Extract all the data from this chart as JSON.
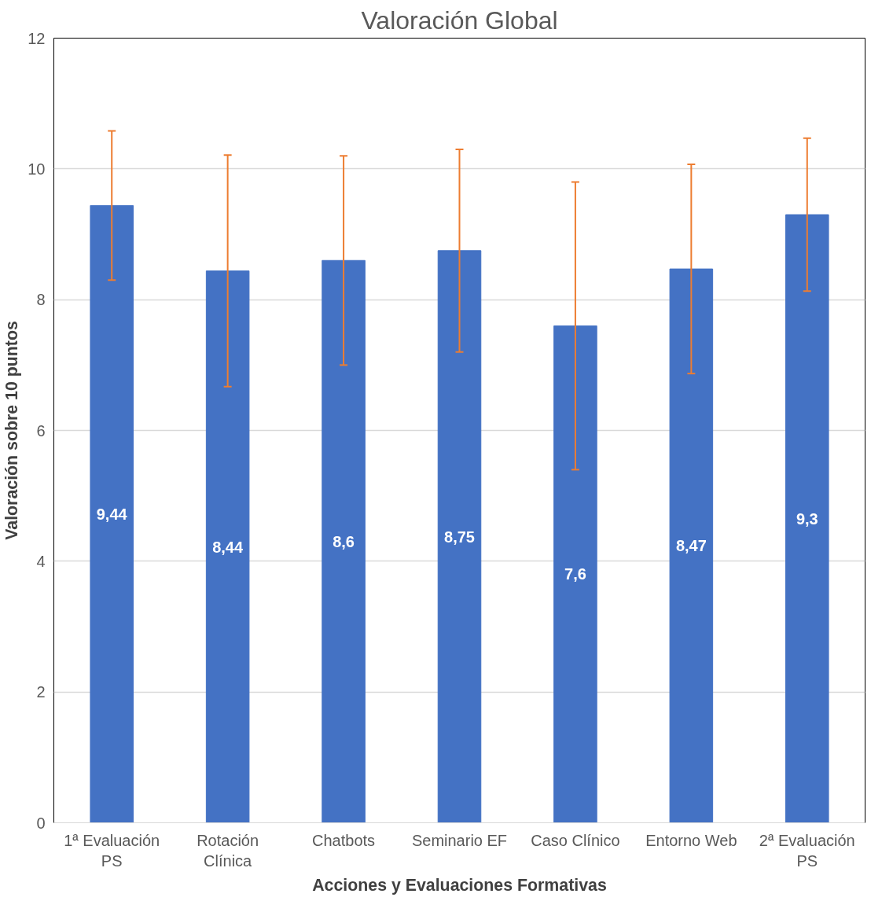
{
  "chart_data": {
    "type": "bar",
    "title": "Valoración Global",
    "xlabel": "Acciones y Evaluaciones Formativas",
    "ylabel": "Valoración sobre 10 puntos",
    "categories": [
      "1ª Evaluación PS",
      "Rotación Clínica",
      "Chatbots",
      "Seminario EF",
      "Caso Clínico",
      "Entorno Web",
      "2ª Evaluación PS"
    ],
    "values": [
      9.44,
      8.44,
      8.6,
      8.75,
      7.6,
      8.47,
      9.3
    ],
    "errors": [
      1.14,
      1.77,
      1.6,
      1.55,
      2.2,
      1.6,
      1.17
    ],
    "value_labels": [
      "9,44",
      "8,44",
      "8,6",
      "8,75",
      "7,6",
      "8,47",
      "9,3"
    ],
    "color": "#4472c4",
    "ylim": [
      0,
      12
    ],
    "yticks": [
      0,
      2,
      4,
      6,
      8,
      10,
      12
    ],
    "grid": "y"
  }
}
